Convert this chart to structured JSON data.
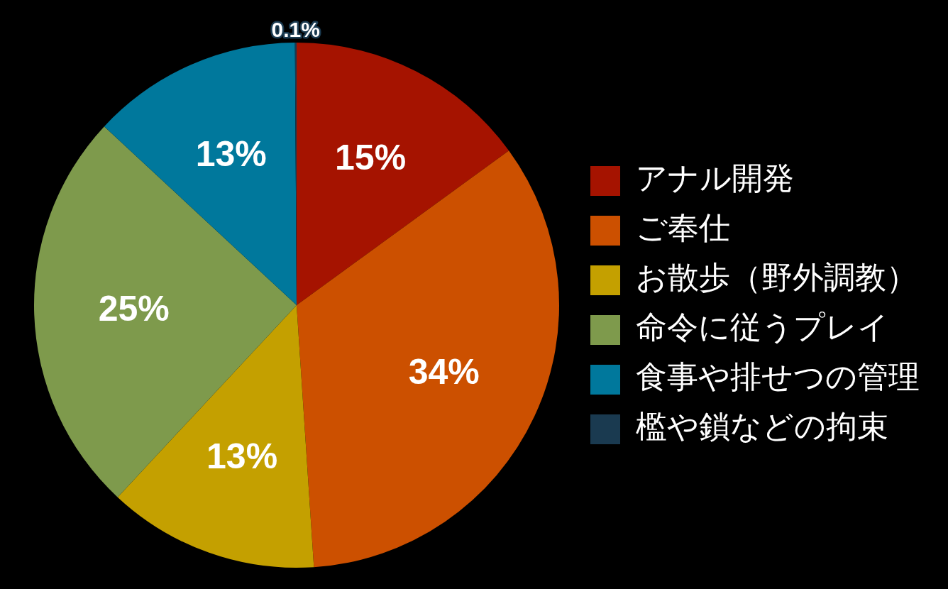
{
  "chart_data": {
    "type": "pie",
    "categories": [
      "アナル開発",
      "ご奉仕",
      "お散歩（野外調教）",
      "命令に従うプレイ",
      "食事や排せつの管理",
      "檻や鎖などの拘束"
    ],
    "values": [
      15,
      34,
      13,
      25,
      13,
      0.1
    ],
    "colors": [
      "#a51300",
      "#cc5000",
      "#c4a000",
      "#7e9a4c",
      "#00789c",
      "#1a3a50"
    ],
    "value_labels": [
      "15%",
      "34%",
      "13%",
      "25%",
      "13%",
      "0.1%"
    ],
    "legend": "right"
  }
}
